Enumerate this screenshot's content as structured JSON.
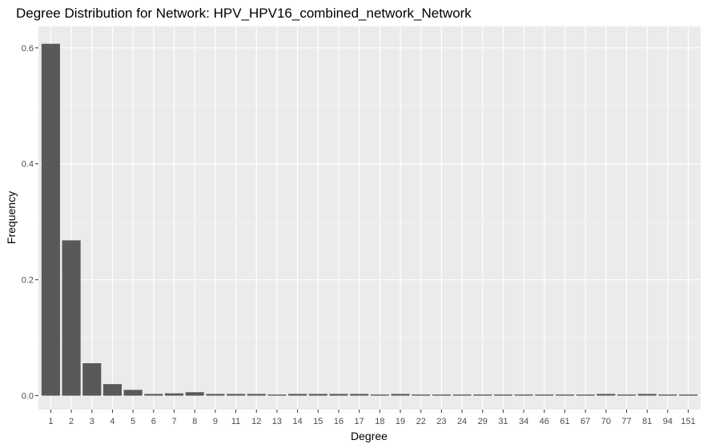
{
  "chart_data": {
    "type": "bar",
    "title": "Degree Distribution for Network: HPV_HPV16_combined_network_Network",
    "xlabel": "Degree",
    "ylabel": "Frequency",
    "categories": [
      "1",
      "2",
      "3",
      "4",
      "5",
      "6",
      "7",
      "8",
      "9",
      "11",
      "12",
      "13",
      "14",
      "15",
      "16",
      "17",
      "18",
      "19",
      "22",
      "23",
      "24",
      "29",
      "31",
      "34",
      "46",
      "61",
      "67",
      "70",
      "77",
      "81",
      "94",
      "151"
    ],
    "values": [
      0.607,
      0.268,
      0.056,
      0.02,
      0.01,
      0.003,
      0.004,
      0.006,
      0.003,
      0.003,
      0.003,
      0.002,
      0.003,
      0.003,
      0.003,
      0.003,
      0.002,
      0.003,
      0.002,
      0.002,
      0.002,
      0.002,
      0.002,
      0.002,
      0.002,
      0.002,
      0.002,
      0.003,
      0.002,
      0.003,
      0.002,
      0.002
    ],
    "ylim": [
      -0.024,
      0.637
    ],
    "yticks": [
      0.0,
      0.2,
      0.4,
      0.6
    ],
    "ytick_labels": [
      "0.0",
      "0.2",
      "0.4",
      "0.6"
    ],
    "grid": true,
    "colors": {
      "bar": "#595959",
      "panel": "#ebebeb",
      "grid_major": "#ffffff",
      "tick_text": "#4d4d4d",
      "tick_mark": "#333333"
    }
  }
}
